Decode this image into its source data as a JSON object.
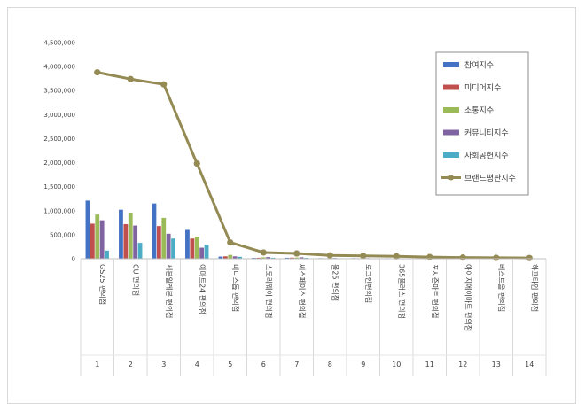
{
  "chart_data": {
    "type": "bar",
    "categories": [
      "GS25 편의점",
      "CU 편의점",
      "세븐일레븐 편의점",
      "이마트24 편의점",
      "미니스톱 편의점",
      "스토리웨이 편의점",
      "씨스페이스 편의점",
      "볼25 편의점",
      "로그인편의점",
      "365플러스 편의점",
      "포시즌마트 편의점",
      "아이지에이마트 편의점",
      "베스트올 편의점",
      "하프타임 편의점"
    ],
    "index_labels": [
      "1",
      "2",
      "3",
      "4",
      "5",
      "6",
      "7",
      "8",
      "9",
      "10",
      "11",
      "12",
      "13",
      "14"
    ],
    "ylim": [
      0,
      4500000
    ],
    "yticks": [
      "0",
      "500,000",
      "1,000,000",
      "1,500,000",
      "2,000,000",
      "2,500,000",
      "3,000,000",
      "3,500,000",
      "4,000,000",
      "4,500,000"
    ],
    "legend_position": "top-right",
    "series": [
      {
        "name": "참여지수",
        "color": "#4472c4",
        "kind": "bar",
        "values": [
          1210000,
          1020000,
          1150000,
          600000,
          45000,
          18000,
          20000,
          12000,
          12000,
          10000,
          7000,
          5000,
          4000,
          3000
        ]
      },
      {
        "name": "미디어지수",
        "color": "#c0504d",
        "kind": "bar",
        "values": [
          730000,
          720000,
          680000,
          420000,
          50000,
          20000,
          22000,
          10000,
          10000,
          9000,
          6000,
          5000,
          3000,
          2000
        ]
      },
      {
        "name": "소통지수",
        "color": "#9bbb59",
        "kind": "bar",
        "values": [
          920000,
          960000,
          850000,
          460000,
          80000,
          30000,
          25000,
          15000,
          14000,
          12000,
          8000,
          6000,
          5000,
          4000
        ]
      },
      {
        "name": "커뮤니티지수",
        "color": "#8064a2",
        "kind": "bar",
        "values": [
          800000,
          690000,
          520000,
          230000,
          50000,
          35000,
          30000,
          15000,
          12000,
          10000,
          8000,
          5000,
          4000,
          3000
        ]
      },
      {
        "name": "사회공헌지수",
        "color": "#4bacc6",
        "kind": "bar",
        "values": [
          170000,
          330000,
          420000,
          290000,
          40000,
          20000,
          18000,
          10000,
          8000,
          8000,
          5000,
          4000,
          3000,
          2000
        ]
      },
      {
        "name": "브랜드평판지수",
        "color": "#948a54",
        "kind": "line",
        "values": [
          3880000,
          3740000,
          3630000,
          1980000,
          340000,
          130000,
          110000,
          70000,
          60000,
          50000,
          35000,
          25000,
          20000,
          15000
        ]
      }
    ]
  }
}
